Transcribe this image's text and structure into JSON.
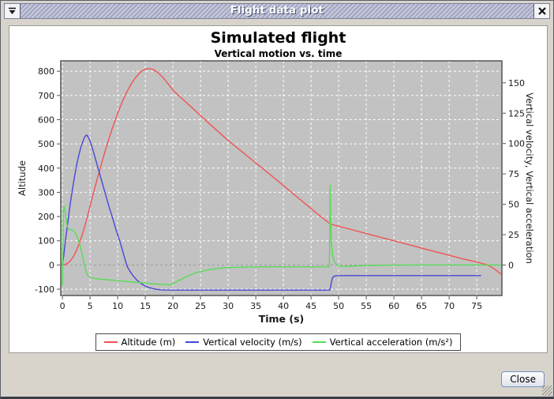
{
  "window": {
    "title": "Flight data plot",
    "close_label": "Close"
  },
  "chart_data": {
    "type": "line",
    "title": "Simulated flight",
    "subtitle": "Vertical motion vs. time",
    "xlabel": "Time (s)",
    "ylabel_left": "Altitude",
    "ylabel_right": "Vertical velocity, Vertical acceleration",
    "x_ticks": [
      0,
      5,
      10,
      15,
      20,
      25,
      30,
      35,
      40,
      45,
      50,
      55,
      60,
      65,
      70,
      75
    ],
    "left_ticks": [
      -100,
      0,
      100,
      200,
      300,
      400,
      500,
      600,
      700,
      800
    ],
    "right_ticks": [
      0,
      25,
      50,
      75,
      100,
      125,
      150
    ],
    "x_range": [
      -0.3,
      79.55
    ],
    "left_range": [
      -126,
      843
    ],
    "right_range": [
      -25.1,
      168.1
    ],
    "plot_bg": "#c2c2c2",
    "grid_color": "#ffffff",
    "zero_line_color": "#9a9a9a",
    "legend_position": "bottom",
    "series": [
      {
        "name": "Altitude (m)",
        "axis": "left",
        "color": "#f05454",
        "points": [
          [
            0,
            0
          ],
          [
            0.5,
            2
          ],
          [
            1,
            8
          ],
          [
            1.5,
            19
          ],
          [
            2,
            35
          ],
          [
            2.5,
            58
          ],
          [
            3,
            86
          ],
          [
            3.5,
            119
          ],
          [
            4,
            156
          ],
          [
            4.5,
            199
          ],
          [
            5,
            243
          ],
          [
            5.5,
            287
          ],
          [
            6,
            330
          ],
          [
            6.5,
            372
          ],
          [
            7,
            413
          ],
          [
            7.5,
            452
          ],
          [
            8,
            490
          ],
          [
            8.5,
            527
          ],
          [
            9,
            562
          ],
          [
            9.5,
            595
          ],
          [
            10,
            626
          ],
          [
            10.5,
            655
          ],
          [
            11,
            682
          ],
          [
            11.5,
            707
          ],
          [
            12,
            729
          ],
          [
            12.5,
            749
          ],
          [
            13,
            766
          ],
          [
            13.5,
            781
          ],
          [
            14,
            793
          ],
          [
            14.5,
            802
          ],
          [
            15,
            808
          ],
          [
            15.5,
            811
          ],
          [
            16,
            810
          ],
          [
            16.5,
            806
          ],
          [
            17,
            799
          ],
          [
            17.5,
            790
          ],
          [
            18,
            779
          ],
          [
            18.5,
            766
          ],
          [
            19,
            752
          ],
          [
            19.5,
            737
          ],
          [
            20,
            722
          ],
          [
            22,
            680
          ],
          [
            24,
            638
          ],
          [
            26,
            596
          ],
          [
            28,
            555
          ],
          [
            30,
            514
          ],
          [
            32,
            477
          ],
          [
            34,
            440
          ],
          [
            36,
            403
          ],
          [
            38,
            366
          ],
          [
            40,
            328
          ],
          [
            42,
            290
          ],
          [
            44,
            252
          ],
          [
            46,
            214
          ],
          [
            48,
            178
          ],
          [
            48.5,
            169
          ],
          [
            49,
            166
          ],
          [
            50,
            160
          ],
          [
            52,
            148
          ],
          [
            54,
            136
          ],
          [
            56,
            124
          ],
          [
            58,
            112
          ],
          [
            60,
            100
          ],
          [
            62,
            88
          ],
          [
            64,
            76
          ],
          [
            66,
            64
          ],
          [
            68,
            52
          ],
          [
            70,
            40
          ],
          [
            72,
            28
          ],
          [
            74,
            18
          ],
          [
            75,
            13
          ],
          [
            76,
            6
          ],
          [
            77,
            0
          ],
          [
            78.2,
            -16
          ],
          [
            79.4,
            -38
          ]
        ]
      },
      {
        "name": "Vertical velocity (m/s)",
        "axis": "right",
        "color": "#4747d6",
        "points": [
          [
            0,
            0
          ],
          [
            0.3,
            10
          ],
          [
            0.6,
            22
          ],
          [
            1,
            36
          ],
          [
            1.4,
            50
          ],
          [
            1.8,
            62
          ],
          [
            2.2,
            73
          ],
          [
            2.6,
            83
          ],
          [
            3,
            91
          ],
          [
            3.4,
            98
          ],
          [
            3.8,
            103
          ],
          [
            4.1,
            106
          ],
          [
            4.4,
            107
          ],
          [
            4.7,
            105
          ],
          [
            5,
            102
          ],
          [
            5.5,
            95
          ],
          [
            6,
            87
          ],
          [
            6.5,
            79
          ],
          [
            7,
            71
          ],
          [
            7.5,
            63
          ],
          [
            8,
            55
          ],
          [
            8.5,
            47
          ],
          [
            9,
            40
          ],
          [
            9.5,
            32
          ],
          [
            10,
            25
          ],
          [
            10.5,
            18
          ],
          [
            11,
            10
          ],
          [
            11.5,
            2
          ],
          [
            11.8,
            -2
          ],
          [
            12.5,
            -7
          ],
          [
            13,
            -10
          ],
          [
            13.5,
            -12.5
          ],
          [
            14,
            -14.5
          ],
          [
            14.5,
            -16
          ],
          [
            15,
            -17.3
          ],
          [
            15.5,
            -18.3
          ],
          [
            16,
            -19
          ],
          [
            16.5,
            -19.6
          ],
          [
            17,
            -20
          ],
          [
            17.5,
            -20.3
          ],
          [
            18,
            -20.5
          ],
          [
            19,
            -20.6
          ],
          [
            20,
            -20.7
          ],
          [
            25,
            -20.7
          ],
          [
            30,
            -20.7
          ],
          [
            35,
            -20.7
          ],
          [
            40,
            -20.7
          ],
          [
            45,
            -20.7
          ],
          [
            48.4,
            -20.7
          ],
          [
            48.55,
            -18
          ],
          [
            48.7,
            -14
          ],
          [
            48.85,
            -11
          ],
          [
            49,
            -9.8
          ],
          [
            49.3,
            -9
          ],
          [
            49.7,
            -8.8
          ],
          [
            50,
            -8.7
          ],
          [
            55,
            -8.7
          ],
          [
            60,
            -8.7
          ],
          [
            65,
            -8.7
          ],
          [
            70,
            -8.7
          ],
          [
            75.8,
            -8.7
          ]
        ]
      },
      {
        "name": "Vertical acceleration (m/s²)",
        "axis": "right",
        "color": "#57dc57",
        "points": [
          [
            0,
            -17
          ],
          [
            0.08,
            10
          ],
          [
            0.15,
            46
          ],
          [
            0.3,
            48
          ],
          [
            0.5,
            44
          ],
          [
            0.7,
            37
          ],
          [
            0.9,
            31.5
          ],
          [
            1.1,
            29.5
          ],
          [
            1.4,
            29
          ],
          [
            1.8,
            28.8
          ],
          [
            2.1,
            28
          ],
          [
            2.4,
            26
          ],
          [
            2.7,
            23
          ],
          [
            3,
            19
          ],
          [
            3.3,
            14
          ],
          [
            3.6,
            8
          ],
          [
            3.85,
            3
          ],
          [
            4.05,
            -2
          ],
          [
            4.3,
            -6
          ],
          [
            4.6,
            -8.5
          ],
          [
            5,
            -10
          ],
          [
            5.5,
            -10.8
          ],
          [
            6,
            -11.2
          ],
          [
            7,
            -11.7
          ],
          [
            8,
            -12.1
          ],
          [
            9,
            -12.5
          ],
          [
            10,
            -12.9
          ],
          [
            11,
            -13.3
          ],
          [
            12,
            -13.7
          ],
          [
            13,
            -14.1
          ],
          [
            14,
            -14.5
          ],
          [
            15,
            -14.9
          ],
          [
            16,
            -15.3
          ],
          [
            17,
            -15.6
          ],
          [
            18,
            -15.9
          ],
          [
            19,
            -16.2
          ],
          [
            19.6,
            -16.3
          ],
          [
            20,
            -15.5
          ],
          [
            20.6,
            -14
          ],
          [
            21.3,
            -12.2
          ],
          [
            22,
            -10.5
          ],
          [
            22.8,
            -8.8
          ],
          [
            23.6,
            -7.3
          ],
          [
            24.5,
            -6
          ],
          [
            25.5,
            -4.8
          ],
          [
            26.5,
            -3.9
          ],
          [
            27.5,
            -3.2
          ],
          [
            28.5,
            -2.7
          ],
          [
            30,
            -2.1
          ],
          [
            32,
            -1.8
          ],
          [
            34,
            -1.6
          ],
          [
            36,
            -1.5
          ],
          [
            40,
            -1.5
          ],
          [
            44,
            -1.5
          ],
          [
            48.3,
            -1.5
          ],
          [
            48.4,
            20
          ],
          [
            48.45,
            66
          ],
          [
            48.55,
            40
          ],
          [
            48.7,
            18
          ],
          [
            48.9,
            8
          ],
          [
            49.2,
            3
          ],
          [
            49.6,
            0.5
          ],
          [
            50,
            -0.8
          ],
          [
            50.5,
            -1.2
          ],
          [
            51,
            -1.2
          ],
          [
            52,
            -1
          ],
          [
            54,
            -0.6
          ],
          [
            56,
            -0.4
          ],
          [
            58,
            -0.2
          ],
          [
            60,
            -0.1
          ],
          [
            65,
            0
          ],
          [
            70,
            0
          ],
          [
            79.4,
            0
          ]
        ]
      }
    ]
  }
}
